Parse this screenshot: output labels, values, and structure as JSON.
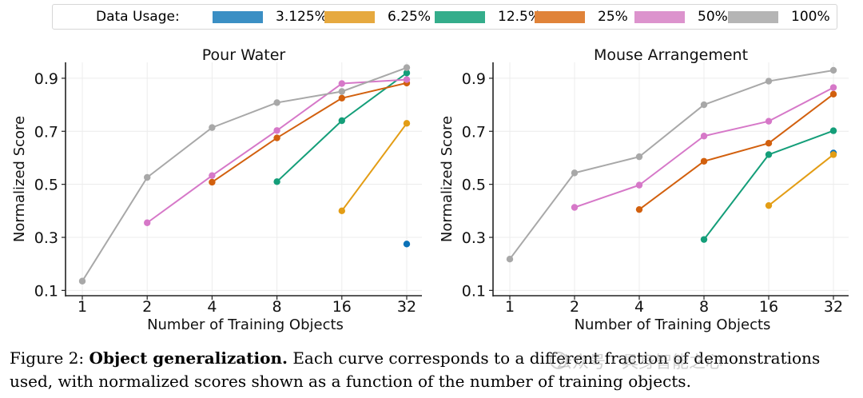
{
  "legend": {
    "title": "Data Usage:",
    "items": [
      {
        "label": "3.125%",
        "color": "#3b8fc4"
      },
      {
        "label": "6.25%",
        "color": "#e6a93f"
      },
      {
        "label": "12.5%",
        "color": "#34ad8b"
      },
      {
        "label": "25%",
        "color": "#e08339"
      },
      {
        "label": "50%",
        "color": "#dc93cd"
      },
      {
        "label": "100%",
        "color": "#b5b5b5"
      }
    ]
  },
  "caption": {
    "figure_label": "Figure 2:",
    "bold_title": "Object generalization.",
    "text": "Each curve corresponds to a different fraction of demonstrations used, with normalized scores shown as a function of the number of training objects."
  },
  "watermark": {
    "text": "公众号 · 具身智能之心"
  },
  "chart_data": [
    {
      "type": "line",
      "title": "Pour Water",
      "xlabel": "Number of Training Objects",
      "ylabel": "Normalized Score",
      "categories": [
        "1",
        "2",
        "4",
        "8",
        "16",
        "32"
      ],
      "yticks": [
        "0.1",
        "0.3",
        "0.5",
        "0.7",
        "0.9"
      ],
      "ylim": [
        0.08,
        0.96
      ],
      "series": [
        {
          "name": "3.125%",
          "color": "#0b72b8",
          "values": [
            null,
            null,
            null,
            null,
            null,
            0.275
          ]
        },
        {
          "name": "6.25%",
          "color": "#e39d15",
          "values": [
            null,
            null,
            null,
            null,
            0.4,
            0.73
          ]
        },
        {
          "name": "12.5%",
          "color": "#149e79",
          "values": [
            null,
            null,
            null,
            0.51,
            0.74,
            0.92
          ]
        },
        {
          "name": "25%",
          "color": "#d2600e",
          "values": [
            null,
            null,
            0.508,
            0.675,
            0.825,
            0.882
          ]
        },
        {
          "name": "50%",
          "color": "#d678c8",
          "values": [
            null,
            0.355,
            0.533,
            0.703,
            0.88,
            0.895
          ]
        },
        {
          "name": "100%",
          "color": "#a8a8a8",
          "values": [
            0.135,
            0.526,
            0.714,
            0.808,
            0.85,
            0.94
          ]
        }
      ]
    },
    {
      "type": "line",
      "title": "Mouse Arrangement",
      "xlabel": "Number of Training Objects",
      "ylabel": "Normalized Score",
      "categories": [
        "1",
        "2",
        "4",
        "8",
        "16",
        "32"
      ],
      "yticks": [
        "0.1",
        "0.3",
        "0.5",
        "0.7",
        "0.9"
      ],
      "ylim": [
        0.08,
        0.96
      ],
      "series": [
        {
          "name": "3.125%",
          "color": "#0b72b8",
          "values": [
            null,
            null,
            null,
            null,
            null,
            0.618
          ]
        },
        {
          "name": "6.25%",
          "color": "#e39d15",
          "values": [
            null,
            null,
            null,
            null,
            0.42,
            0.612
          ]
        },
        {
          "name": "12.5%",
          "color": "#149e79",
          "values": [
            null,
            null,
            null,
            0.292,
            0.612,
            0.702
          ]
        },
        {
          "name": "25%",
          "color": "#d2600e",
          "values": [
            null,
            null,
            0.405,
            0.587,
            0.655,
            0.84
          ]
        },
        {
          "name": "50%",
          "color": "#d678c8",
          "values": [
            null,
            0.413,
            0.497,
            0.682,
            0.738,
            0.865
          ]
        },
        {
          "name": "100%",
          "color": "#a8a8a8",
          "values": [
            0.218,
            0.543,
            0.604,
            0.8,
            0.889,
            0.93
          ]
        }
      ]
    }
  ]
}
